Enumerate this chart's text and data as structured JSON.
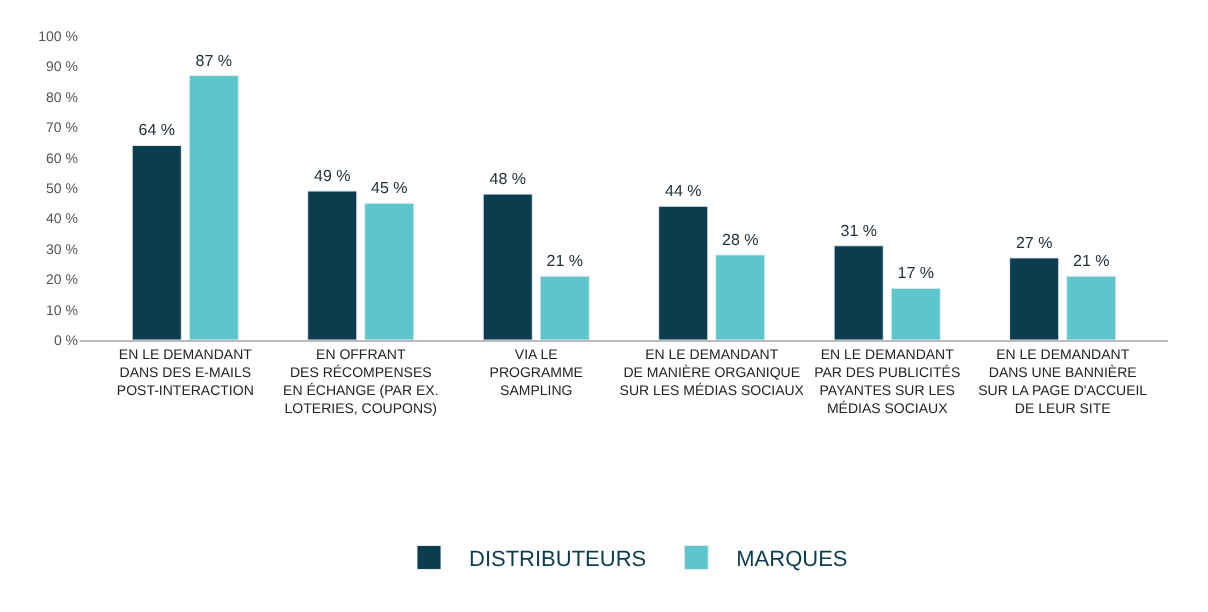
{
  "chart_data": {
    "type": "bar",
    "categories": [
      "EN LE DEMANDANT\nDANS DES E-MAILS\nPOST-INTERACTION",
      "EN OFFRANT\nDES RÉCOMPENSES\nEN ÉCHANGE (PAR EX.\nLOTERIES, COUPONS)",
      "VIA LE\nPROGRAMME\nSAMPLING",
      "EN LE DEMANDANT\nDE MANIÈRE ORGANIQUE\nSUR LES MÉDIAS SOCIAUX",
      "EN LE DEMANDANT\nPAR DES PUBLICITÉS\nPAYANTES SUR LES\nMÉDIAS SOCIAUX",
      "EN LE DEMANDANT\nDANS UNE BANNIÈRE\nSUR LA PAGE D'ACCUEIL\nDE LEUR SITE"
    ],
    "series": [
      {
        "name": "DISTRIBUTEURS",
        "color": "#0b3d4f",
        "values": [
          64,
          49,
          48,
          44,
          31,
          27
        ],
        "value_labels": [
          "64 %",
          "49 %",
          "48 %",
          "44 %",
          "31 %",
          "27 %"
        ]
      },
      {
        "name": "MARQUES",
        "color": "#5cc6cc",
        "values": [
          87,
          45,
          21,
          28,
          17,
          21
        ],
        "value_labels": [
          "87 %",
          "45 %",
          "21 %",
          "28 %",
          "17 %",
          "21 %"
        ]
      }
    ],
    "ylim": [
      0,
      100
    ],
    "yticks": [
      {
        "value": 0,
        "label": "0 %"
      },
      {
        "value": 10,
        "label": "10 %"
      },
      {
        "value": 20,
        "label": "20 %"
      },
      {
        "value": 30,
        "label": "30 %"
      },
      {
        "value": 40,
        "label": "40 %"
      },
      {
        "value": 50,
        "label": "50 %"
      },
      {
        "value": 60,
        "label": "60 %"
      },
      {
        "value": 70,
        "label": "70 %"
      },
      {
        "value": 80,
        "label": "80 %"
      },
      {
        "value": 90,
        "label": "90 %"
      },
      {
        "value": 100,
        "label": "100 %"
      }
    ],
    "legend": "bottom"
  }
}
